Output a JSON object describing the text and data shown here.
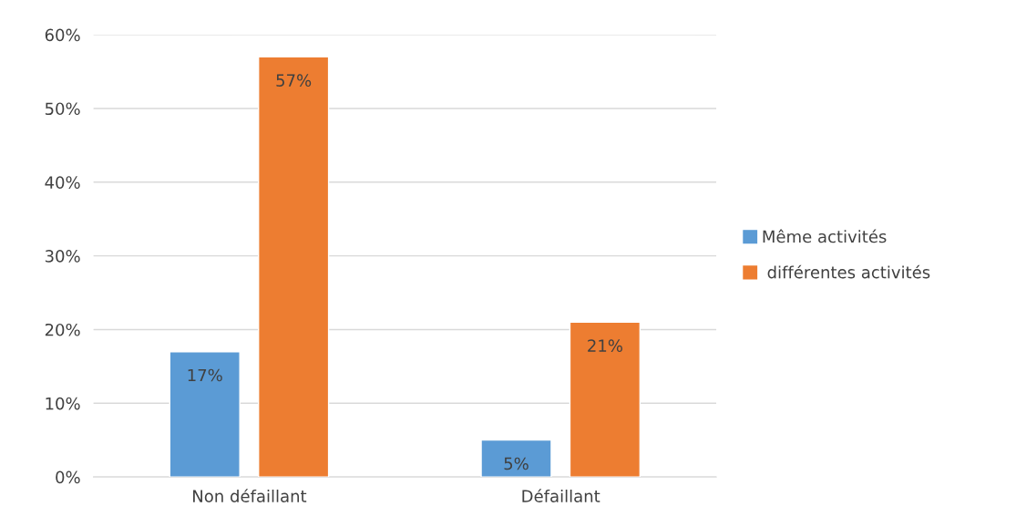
{
  "chart_data": {
    "type": "bar",
    "categories": [
      "Non défaillant",
      "Défaillant"
    ],
    "series": [
      {
        "name": "Même activités",
        "color": "#5b9bd5",
        "values": [
          17,
          5
        ],
        "value_labels": [
          "17%",
          "5%"
        ]
      },
      {
        "name": " différentes activités",
        "color": "#ed7d31",
        "values": [
          57,
          21
        ],
        "value_labels": [
          "57%",
          "21%"
        ]
      }
    ],
    "ylim": [
      0,
      60
    ],
    "yticks": [
      {
        "value": 0,
        "label": "0%"
      },
      {
        "value": 10,
        "label": "10%"
      },
      {
        "value": 20,
        "label": "20%"
      },
      {
        "value": 30,
        "label": "30%"
      },
      {
        "value": 40,
        "label": "40%"
      },
      {
        "value": 50,
        "label": "50%"
      },
      {
        "value": 60,
        "label": "60%"
      }
    ],
    "grid": "y",
    "legend": "right"
  }
}
